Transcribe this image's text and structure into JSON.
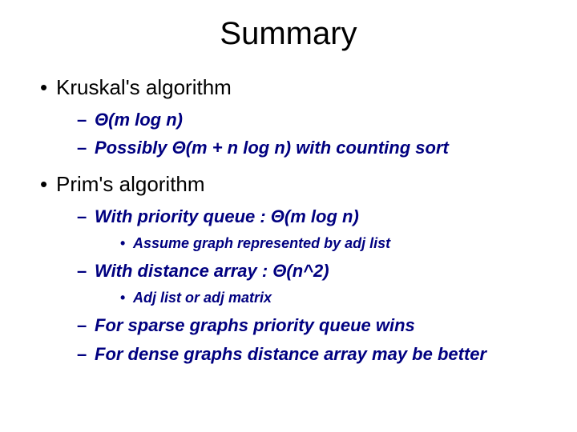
{
  "title": "Summary",
  "colors": {
    "background": "#ffffff",
    "heading_text": "#000000",
    "body_text": "#000000",
    "subpoint_text": "#000080"
  },
  "typography": {
    "title_fontsize_pt": 40,
    "l1_fontsize_pt": 26,
    "l2_fontsize_pt": 22,
    "l3_fontsize_pt": 18,
    "font_family": "Arial",
    "subpoint_weight": "bold",
    "subpoint_style": "italic"
  },
  "bullets": {
    "l1": "•",
    "l2": "–",
    "l3": "•"
  },
  "kruskal": {
    "heading": "Kruskal's algorithm",
    "p1": "Θ(m log n)",
    "p2": "Possibly Θ(m + n log n) with counting sort"
  },
  "prim": {
    "heading": "Prim's algorithm",
    "pq": {
      "line": "With priority queue : Θ(m log n)",
      "sub": "Assume graph represented by adj list"
    },
    "darr": {
      "line": "With distance array : Θ(n^2)",
      "sub": "Adj list or adj matrix"
    },
    "sparse": "For sparse graphs priority queue wins",
    "dense": "For dense graphs distance array may be better"
  }
}
